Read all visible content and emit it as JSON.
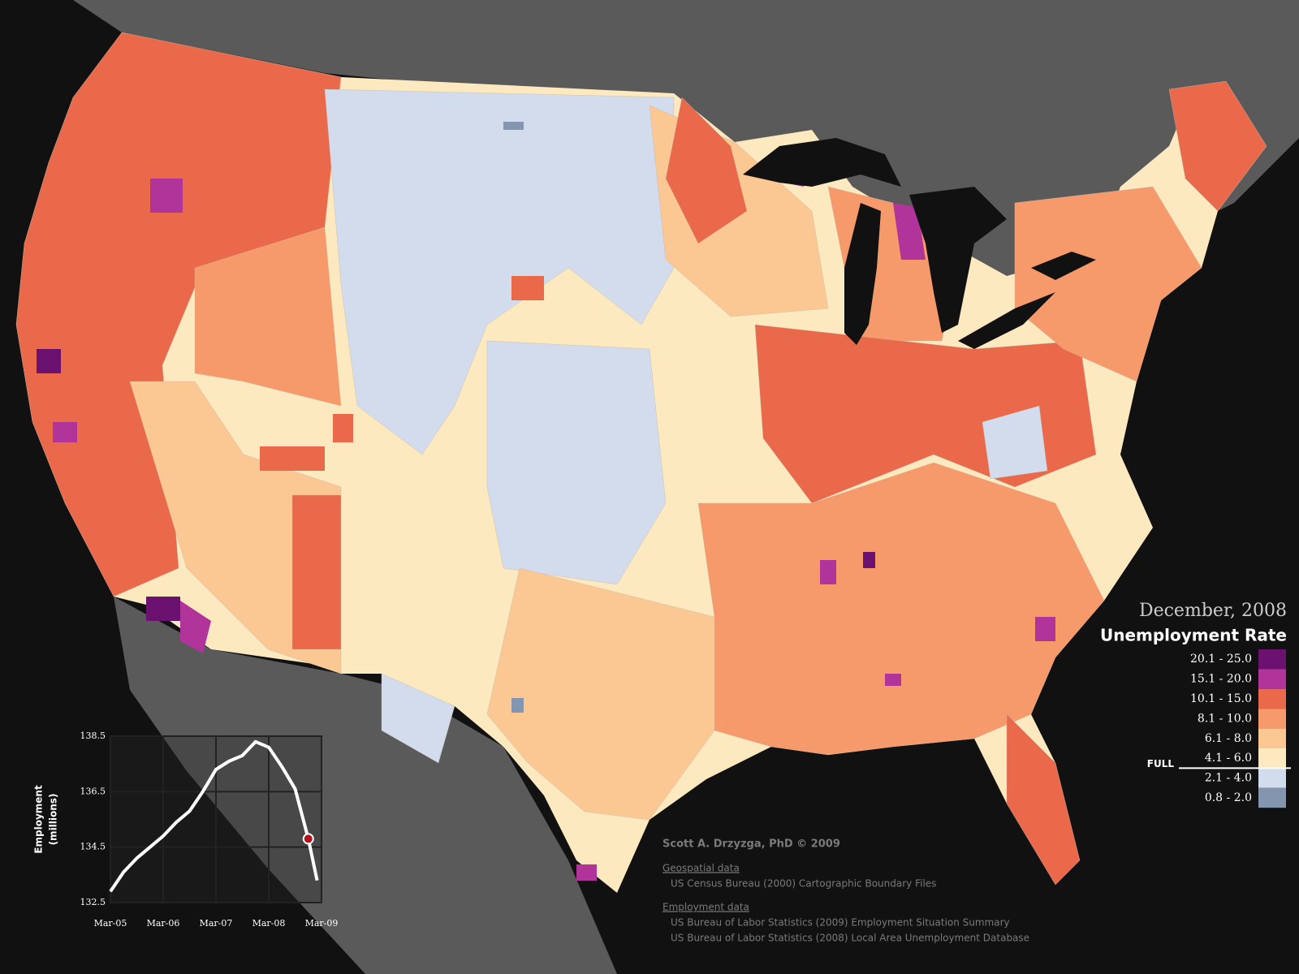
{
  "map": {
    "date": "December, 2008",
    "title": "Unemployment Rate",
    "legend": [
      {
        "label": "20.1 - 25.0",
        "color": "#6b1270"
      },
      {
        "label": "15.1 - 20.0",
        "color": "#b0349a"
      },
      {
        "label": "10.1 - 15.0",
        "color": "#e9694a"
      },
      {
        "label": "8.1 - 10.0",
        "color": "#f79a6b"
      },
      {
        "label": "6.1 - 8.0",
        "color": "#fbc793"
      },
      {
        "label": "4.1 - 6.0",
        "color": "#fde9bf"
      },
      {
        "label": "2.1 - 4.0",
        "color": "#d2dcec"
      },
      {
        "label": "0.8 - 2.0",
        "color": "#8495b0"
      }
    ],
    "full_label": "FULL"
  },
  "credits": {
    "author": "Scott A. Drzyzga, PhD © 2009",
    "geo_heading": "Geospatial data",
    "geo_sources": [
      "US Census Bureau (2000) Cartographic Boundary Files"
    ],
    "emp_heading": "Employment data",
    "emp_sources": [
      "US Bureau of Labor Statistics (2009) Employment Situation Summary",
      "US Bureau of Labor Statistics (2008) Local Area Unemployment Database"
    ]
  },
  "chart_data": {
    "type": "line",
    "y_label": [
      "Employment",
      "(millions)"
    ],
    "x": [
      "2005-03",
      "2005-06",
      "2005-09",
      "2005-12",
      "2006-03",
      "2006-06",
      "2006-09",
      "2006-12",
      "2007-03",
      "2007-06",
      "2007-09",
      "2007-12",
      "2008-03",
      "2008-06",
      "2008-09",
      "2008-12",
      "2009-02"
    ],
    "series": [
      {
        "color": "#ffffff",
        "values": [
          132.9,
          133.6,
          134.1,
          134.5,
          134.9,
          135.4,
          135.8,
          136.5,
          137.3,
          137.6,
          137.8,
          138.3,
          138.1,
          137.4,
          136.6,
          134.8,
          133.3
        ]
      }
    ],
    "marker": {
      "x": "2008-12",
      "value": 134.8,
      "color": "#b5121b"
    },
    "xlim": [
      "2005-03",
      "2009-03"
    ],
    "xticks": [
      {
        "value": "2005-03",
        "label": "Mar-05"
      },
      {
        "value": "2006-03",
        "label": "Mar-06"
      },
      {
        "value": "2007-03",
        "label": "Mar-07"
      },
      {
        "value": "2008-03",
        "label": "Mar-08"
      },
      {
        "value": "2009-03",
        "label": "Mar-09"
      }
    ],
    "ylim": [
      132.5,
      138.5
    ],
    "yticks": [
      132.5,
      134.5,
      136.5,
      138.5
    ],
    "grid": true
  }
}
